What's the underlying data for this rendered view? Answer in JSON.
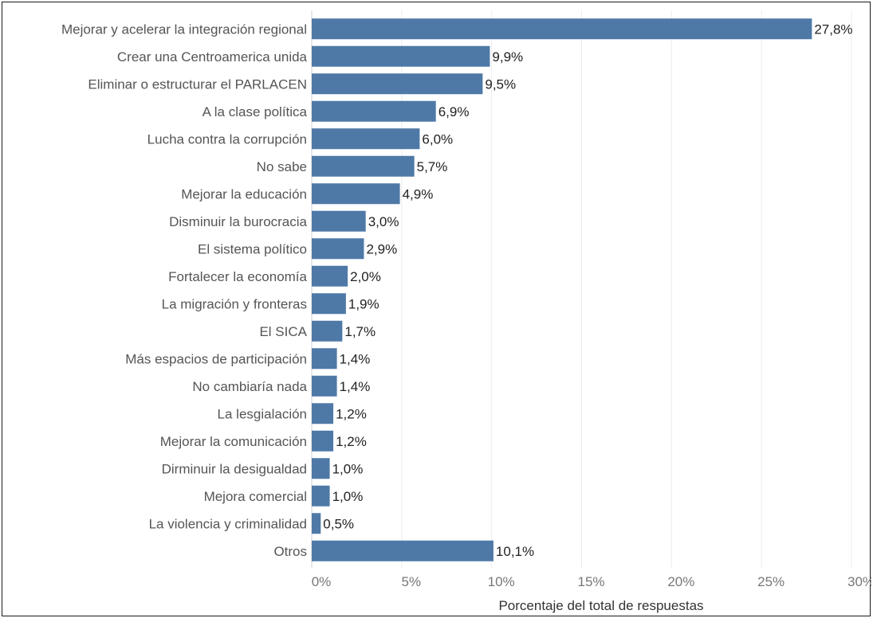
{
  "chart_data": {
    "type": "bar",
    "orientation": "horizontal",
    "categories": [
      "Mejorar y acelerar la integración regional",
      "Crear una Centroamerica unida",
      "Eliminar o estructurar el PARLACEN",
      "A la clase política",
      "Lucha contra la corrupción",
      "No sabe",
      "Mejorar la educación",
      "Disminuir la burocracia",
      "El sistema político",
      "Fortalecer la economía",
      "La migración y fronteras",
      "El SICA",
      "Más espacios de participación",
      "No cambiaría nada",
      "La lesgialación",
      "Mejorar la comunicación",
      "Dirminuir la desigualdad",
      "Mejora comercial",
      "La violencia y criminalidad",
      "Otros"
    ],
    "values": [
      27.8,
      9.9,
      9.5,
      6.9,
      6.0,
      5.7,
      4.9,
      3.0,
      2.9,
      2.0,
      1.9,
      1.7,
      1.4,
      1.4,
      1.2,
      1.2,
      1.0,
      1.0,
      0.5,
      10.1
    ],
    "value_labels": [
      "27,8%",
      "9,9%",
      "9,5%",
      "6,9%",
      "6,0%",
      "5,7%",
      "4,9%",
      "3,0%",
      "2,9%",
      "2,0%",
      "1,9%",
      "1,7%",
      "1,4%",
      "1,4%",
      "1,2%",
      "1,2%",
      "1,0%",
      "1,0%",
      "0,5%",
      "10,1%"
    ],
    "xlabel": "Porcentaje del total de respuestas",
    "xlim": [
      0,
      30
    ],
    "xticks": [
      0,
      5,
      10,
      15,
      20,
      25,
      30
    ],
    "xtick_labels": [
      "0%",
      "5%",
      "10%",
      "15%",
      "20%",
      "25%",
      "30%"
    ],
    "grid": "vertical",
    "bar_color": "#4e79a7"
  }
}
